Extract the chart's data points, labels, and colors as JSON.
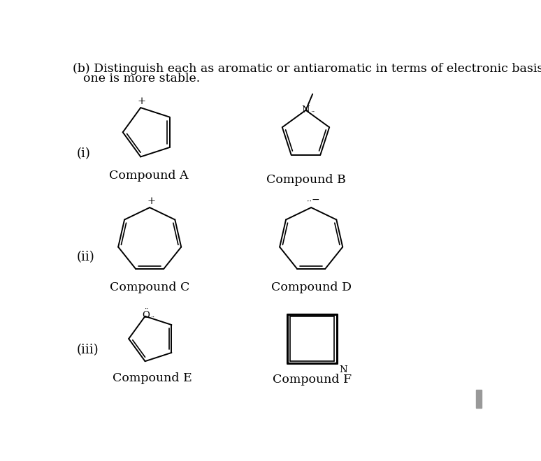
{
  "title_line1": "(b) Distinguish each as aromatic or antiaromatic in terms of electronic basis. Explain which",
  "title_line2": "one is more stable.",
  "label_i": "(i)",
  "label_ii": "(ii)",
  "label_iii": "(iii)",
  "compound_A": "Compound A",
  "compound_B": "Compound B",
  "compound_C": "Compound C",
  "compound_D": "Compound D",
  "compound_E": "Compound E",
  "compound_F": "Compound F",
  "bg_color": "#ffffff",
  "text_color": "#000000",
  "line_color": "#000000",
  "fontsize_title": 12.5,
  "fontsize_label": 13,
  "fontsize_compound": 12.5
}
